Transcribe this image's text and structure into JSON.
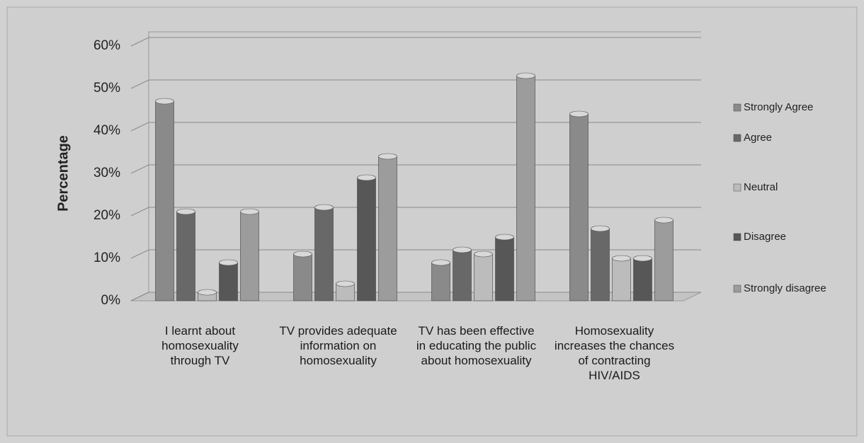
{
  "chart_data": {
    "type": "bar",
    "y_label": "Percentage",
    "categories": [
      "I learnt about homosexuality through TV",
      "TV provides adequate information on homosexuality",
      "TV has been effective in educating the public about homosexuality",
      "Homosexuality increases the chances of contracting HIV/AIDS"
    ],
    "series": [
      {
        "name": "Strongly Agree",
        "color": "#8a8a8a",
        "values": [
          47,
          11,
          9,
          44
        ]
      },
      {
        "name": "Agree",
        "color": "#686868",
        "values": [
          21,
          22,
          12,
          17
        ]
      },
      {
        "name": "Neutral",
        "color": "#bcbcbc",
        "values": [
          2,
          4,
          11,
          10
        ]
      },
      {
        "name": "Disagree",
        "color": "#575757",
        "values": [
          9,
          29,
          15,
          10
        ]
      },
      {
        "name": "Strongly disagree",
        "color": "#9c9c9c",
        "values": [
          21,
          34,
          53,
          19
        ]
      }
    ],
    "ylim": [
      0,
      60
    ],
    "yticks": [
      {
        "value": 0,
        "label": "0%"
      },
      {
        "value": 10,
        "label": "10%"
      },
      {
        "value": 20,
        "label": "20%"
      },
      {
        "value": 30,
        "label": "30%"
      },
      {
        "value": 40,
        "label": "40%"
      },
      {
        "value": 50,
        "label": "50%"
      },
      {
        "value": 60,
        "label": "60%"
      }
    ],
    "grid": true,
    "legend": "right"
  }
}
